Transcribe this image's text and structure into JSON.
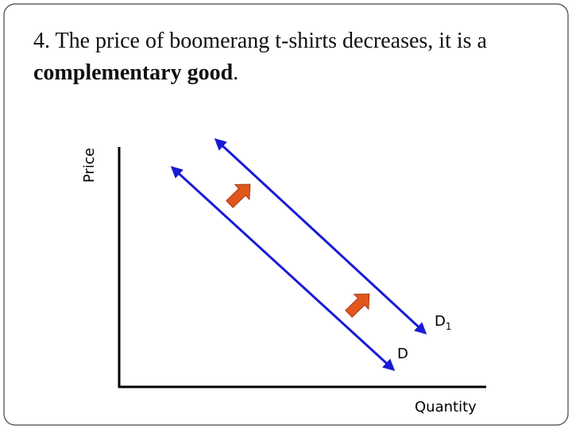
{
  "title": {
    "text": "4. The price of boomerang t-shirts decreases, it is a ",
    "bold": "complementary good",
    "end": "."
  },
  "axes": {
    "y_label": "Price",
    "x_label": "Quantity"
  },
  "curves": [
    {
      "label": "D",
      "subscript": ""
    },
    {
      "label": "D",
      "subscript": "1"
    }
  ]
}
